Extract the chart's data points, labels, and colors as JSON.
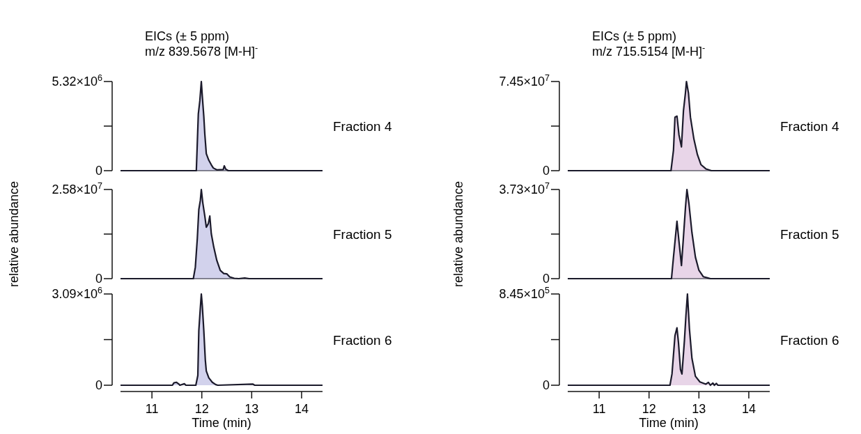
{
  "chart_data": [
    {
      "type": "area",
      "title": "EICs (± 5 ppm)",
      "subtitle": "m/z 839.5678 [M-H]$^{-}$",
      "xlim": [
        10.37,
        14.42
      ],
      "ylim": [
        0,
        5320000
      ],
      "yticks": [
        {
          "value": 0,
          "label": "0"
        },
        {
          "value": 2660000,
          "label": null
        },
        {
          "value": 5320000,
          "label": "5.32×10$^{6}$"
        }
      ],
      "tick_labels": "y",
      "series": [
        {
          "name": "Fraction 4",
          "color": "#d2d2ec",
          "x": [
            10.37,
            11.89,
            11.93,
            11.96,
            11.99,
            12.01,
            12.04,
            12.06,
            12.09,
            12.14,
            12.19,
            12.23,
            12.3,
            12.43,
            12.45,
            12.48,
            12.53,
            14.42
          ],
          "values": [
            0,
            0,
            3380000,
            4160000,
            5320000,
            4430000,
            3240000,
            2190000,
            1010000,
            620000,
            350000,
            160000,
            50000,
            70000,
            290000,
            90000,
            0,
            0
          ]
        }
      ]
    },
    {
      "type": "area",
      "ylabel": "relative abundance",
      "xlim": [
        10.37,
        14.42
      ],
      "ylim": [
        0,
        25800000
      ],
      "yticks": [
        {
          "value": 0,
          "label": "0"
        },
        {
          "value": 12900000,
          "label": null
        },
        {
          "value": 25800000,
          "label": "2.58×10$^{7}$"
        }
      ],
      "tick_labels": "y",
      "series": [
        {
          "name": "Fraction 5",
          "color": "#d2d2ec",
          "x": [
            10.37,
            11.83,
            11.87,
            11.91,
            11.94,
            11.97,
            11.99,
            12.02,
            12.06,
            12.09,
            12.13,
            12.16,
            12.19,
            12.24,
            12.3,
            12.37,
            12.44,
            12.5,
            12.56,
            12.65,
            12.74,
            12.86,
            12.95,
            14.42
          ],
          "values": [
            0,
            0,
            3300000,
            11700000,
            20000000,
            22600000,
            25800000,
            21900000,
            18100000,
            14900000,
            15900000,
            18100000,
            13000000,
            9100000,
            5300000,
            2400000,
            1500000,
            1400000,
            500000,
            100000,
            0,
            200000,
            0,
            0
          ]
        }
      ]
    },
    {
      "type": "area",
      "xlabel": "Time (min)",
      "xlim": [
        10.37,
        14.42
      ],
      "xticks": [
        11,
        12,
        13,
        14
      ],
      "ylim": [
        0,
        3090000
      ],
      "yticks": [
        {
          "value": 0,
          "label": "0"
        },
        {
          "value": 1545000,
          "label": null
        },
        {
          "value": 3090000,
          "label": "3.09×10$^{6}$"
        }
      ],
      "series": [
        {
          "name": "Fraction 6",
          "color": "#d2d2ec",
          "x": [
            10.37,
            11.41,
            11.44,
            11.49,
            11.54,
            11.56,
            11.65,
            11.68,
            11.88,
            11.92,
            11.94,
            11.97,
            11.99,
            12.01,
            12.04,
            12.07,
            12.09,
            12.14,
            12.21,
            12.28,
            12.32,
            13.02,
            13.06,
            14.42
          ],
          "values": [
            0,
            0,
            80000,
            100000,
            40000,
            0,
            50000,
            0,
            0,
            330000,
            1850000,
            2610000,
            3090000,
            2690000,
            1850000,
            860000,
            480000,
            250000,
            100000,
            20000,
            0,
            40000,
            0,
            0
          ]
        }
      ]
    },
    {
      "type": "area",
      "title": "EICs (± 5 ppm)",
      "subtitle": "m/z 715.5154 [M-H]$^{-}$",
      "xlim": [
        10.37,
        14.42
      ],
      "ylim": [
        0,
        74500000
      ],
      "yticks": [
        {
          "value": 0,
          "label": "0"
        },
        {
          "value": 37250000,
          "label": null
        },
        {
          "value": 74500000,
          "label": "7.45×10$^{7}$"
        }
      ],
      "tick_labels": "y",
      "series": [
        {
          "name": "Fraction 4",
          "color": "#e8d5e8",
          "x": [
            10.37,
            12.44,
            12.49,
            12.52,
            12.56,
            12.6,
            12.65,
            12.69,
            12.73,
            12.75,
            12.79,
            12.83,
            12.9,
            12.97,
            13.04,
            13.14,
            13.25,
            14.42
          ],
          "values": [
            0,
            0,
            17100000,
            44700000,
            45600000,
            30000000,
            19900000,
            50000000,
            65000000,
            74500000,
            65000000,
            44700000,
            26300000,
            13400000,
            5100000,
            1500000,
            0,
            0
          ]
        }
      ]
    },
    {
      "type": "area",
      "ylabel": "relative abundance",
      "xlim": [
        10.37,
        14.42
      ],
      "ylim": [
        0,
        37300000
      ],
      "yticks": [
        {
          "value": 0,
          "label": "0"
        },
        {
          "value": 18650000,
          "label": null
        },
        {
          "value": 37300000,
          "label": "3.73×10$^{7}$"
        }
      ],
      "tick_labels": "y",
      "series": [
        {
          "name": "Fraction 5",
          "color": "#e8d5e8",
          "x": [
            10.37,
            12.45,
            12.49,
            12.56,
            12.6,
            12.65,
            12.69,
            12.73,
            12.76,
            12.8,
            12.86,
            12.93,
            13.0,
            13.09,
            13.23,
            14.42
          ],
          "values": [
            0,
            0,
            9000000,
            24000000,
            15600000,
            5500000,
            17400000,
            29600000,
            37300000,
            31400000,
            19300000,
            9000000,
            3500000,
            800000,
            0,
            0
          ]
        }
      ]
    },
    {
      "type": "area",
      "xlabel": "Time (min)",
      "xlim": [
        10.37,
        14.42
      ],
      "xticks": [
        11,
        12,
        13,
        14
      ],
      "ylim": [
        0,
        845000
      ],
      "yticks": [
        {
          "value": 0,
          "label": "0"
        },
        {
          "value": 422500,
          "label": null
        },
        {
          "value": 845000,
          "label": "8.45×10$^{5}$"
        }
      ],
      "series": [
        {
          "name": "Fraction 6",
          "color": "#e8d5e8",
          "x": [
            10.37,
            12.42,
            12.46,
            12.52,
            12.56,
            12.59,
            12.63,
            12.66,
            12.71,
            12.74,
            12.77,
            12.81,
            12.86,
            12.93,
            13.02,
            13.14,
            13.19,
            13.23,
            13.28,
            13.31,
            13.35,
            13.38,
            14.42
          ],
          "values": [
            0,
            0,
            104000,
            459000,
            532000,
            396000,
            146000,
            104000,
            417000,
            647000,
            845000,
            522000,
            250000,
            83000,
            31000,
            10000,
            27000,
            0,
            20000,
            0,
            17000,
            0,
            0
          ]
        }
      ]
    }
  ]
}
